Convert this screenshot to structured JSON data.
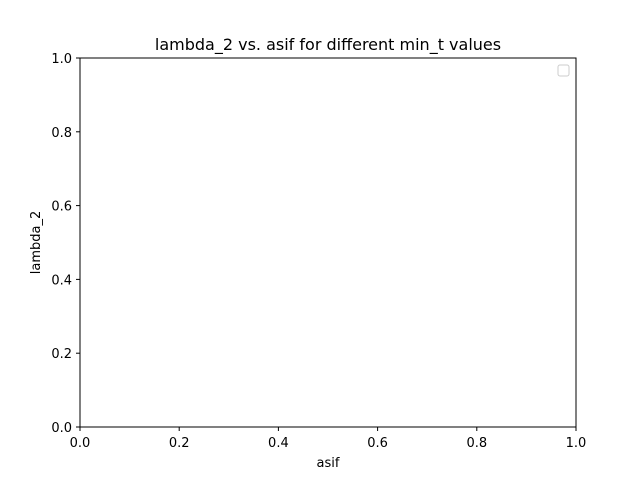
{
  "chart_data": {
    "type": "line",
    "title": "lambda_2 vs. asif for different min_t values",
    "xlabel": "asif",
    "ylabel": "lambda_2",
    "xlim": [
      0,
      1
    ],
    "ylim": [
      0,
      1
    ],
    "x_ticks": [
      "0.0",
      "0.2",
      "0.4",
      "0.6",
      "0.8",
      "1.0"
    ],
    "y_ticks": [
      "0.0",
      "0.2",
      "0.4",
      "0.6",
      "0.8",
      "1.0"
    ],
    "series": [],
    "grid": false,
    "legend": "upper right (empty)"
  }
}
